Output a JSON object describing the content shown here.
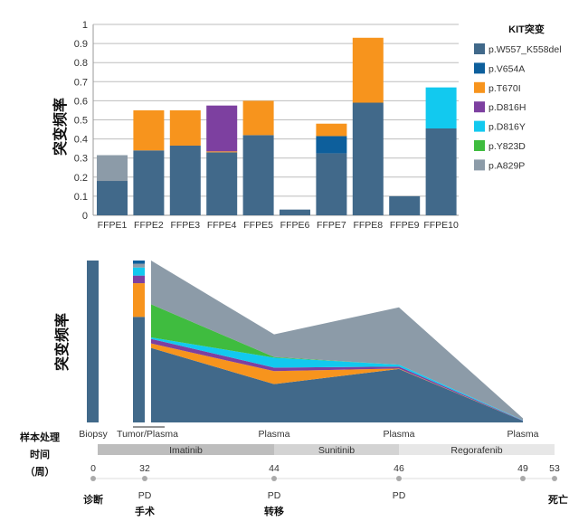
{
  "chart_data": [
    {
      "type": "bar",
      "stacked": true,
      "ylabel": "突变频率",
      "ylim": [
        0,
        1
      ],
      "yticks": [
        "0",
        "0.1",
        "0.2",
        "0.3",
        "0.4",
        "0.5",
        "0.6",
        "0.7",
        "0.8",
        "0.9",
        "1"
      ],
      "grid": true,
      "legend_title": "KIT突变",
      "legend_position": "right",
      "categories": [
        "FFPE1",
        "FFPE2",
        "FFPE3",
        "FFPE4",
        "FFPE5",
        "FFPE6",
        "FFPE7",
        "FFPE8",
        "FFPE9",
        "FFPE10"
      ],
      "series": [
        {
          "name": "p.W557_K558del",
          "color": "#41698a",
          "values": [
            0.18,
            0.34,
            0.365,
            0.33,
            0.42,
            0.03,
            0.325,
            0.59,
            0.1,
            0.455
          ]
        },
        {
          "name": "p.V654A",
          "color": "#0d5f9c",
          "values": [
            0,
            0,
            0,
            0,
            0,
            0,
            0.09,
            0,
            0,
            0
          ]
        },
        {
          "name": "p.T670I",
          "color": "#f7941d",
          "values": [
            0,
            0.21,
            0.185,
            0.005,
            0.18,
            0,
            0.065,
            0.34,
            0,
            0
          ]
        },
        {
          "name": "p.D816H",
          "color": "#7d40a0",
          "values": [
            0,
            0,
            0,
            0.24,
            0,
            0,
            0,
            0,
            0,
            0
          ]
        },
        {
          "name": "p.D816Y",
          "color": "#12c9ef",
          "values": [
            0,
            0,
            0,
            0,
            0,
            0,
            0,
            0,
            0,
            0.215
          ]
        },
        {
          "name": "p.Y823D",
          "color": "#3fbc3f",
          "values": [
            0,
            0,
            0,
            0,
            0,
            0,
            0,
            0,
            0,
            0
          ]
        },
        {
          "name": "p.A829P",
          "color": "#8c9ba8",
          "values": [
            0.135,
            0,
            0,
            0,
            0,
            0,
            0,
            0,
            0,
            0
          ]
        }
      ]
    },
    {
      "type": "area",
      "stacked": true,
      "ylabel": "突变频率",
      "note_scale": "relative, no y-axis ticks shown",
      "bars": [
        {
          "label": "Biopsy",
          "week": 0,
          "values": {
            "p.W557_K558del": 1.0
          }
        },
        {
          "label": "Tumor",
          "week": 32,
          "values": {
            "p.W557_K558del": 0.652,
            "p.T670I": 0.208,
            "p.D816H": 0.047,
            "p.D816Y": 0.05,
            "p.A829P": 0.023,
            "p.V654A": 0.02
          }
        }
      ],
      "area_points": [
        {
          "label": "Plasma",
          "week": 32,
          "values": {
            "p.W557_K558del": 0.46,
            "p.T670I": 0.028,
            "p.D816H": 0.028,
            "p.D816Y": 0.009,
            "p.Y823D": 0.205,
            "p.A829P": 0.27
          }
        },
        {
          "label": "Plasma",
          "week": 44,
          "values": {
            "p.W557_K558del": 0.237,
            "p.T670I": 0.08,
            "p.D816H": 0.022,
            "p.D816Y": 0.061,
            "p.Y823D": 0.004,
            "p.A829P": 0.14
          }
        },
        {
          "label": "Plasma",
          "week": 46,
          "values": {
            "p.W557_K558del": 0.33,
            "p.T670I": 0.003,
            "p.D816H": 0.012,
            "p.D816Y": 0.012,
            "p.Y823D": 0,
            "p.A829P": 0.354
          }
        },
        {
          "label": "Plasma",
          "week": 49,
          "values": {
            "p.W557_K558del": 0.01,
            "p.T670I": 0,
            "p.D816H": 0.002,
            "p.D816Y": 0.002,
            "p.Y823D": 0,
            "p.A829P": 0.012
          }
        }
      ],
      "sample_label": "Tumor/Plasma",
      "time_title": [
        "样本处理",
        "时间",
        "（周）"
      ],
      "treatments": [
        {
          "name": "Imatinib",
          "start": 0,
          "end": 44,
          "color": "#bdbdbd"
        },
        {
          "name": "Sunitinib",
          "start": 44,
          "end": 46,
          "color": "#d3d3d3"
        },
        {
          "name": "Regorafenib",
          "start": 46,
          "end": 53,
          "color": "#e7e7e7"
        }
      ],
      "timeline": [
        {
          "week": "0",
          "events": [
            "诊断"
          ]
        },
        {
          "week": "32",
          "events": [
            "PD",
            "手术"
          ]
        },
        {
          "week": "44",
          "events": [
            "PD",
            "转移"
          ]
        },
        {
          "week": "46",
          "events": [
            "PD"
          ]
        },
        {
          "week": "49",
          "events": []
        },
        {
          "week": "53",
          "events": [
            "死亡"
          ]
        }
      ]
    }
  ]
}
